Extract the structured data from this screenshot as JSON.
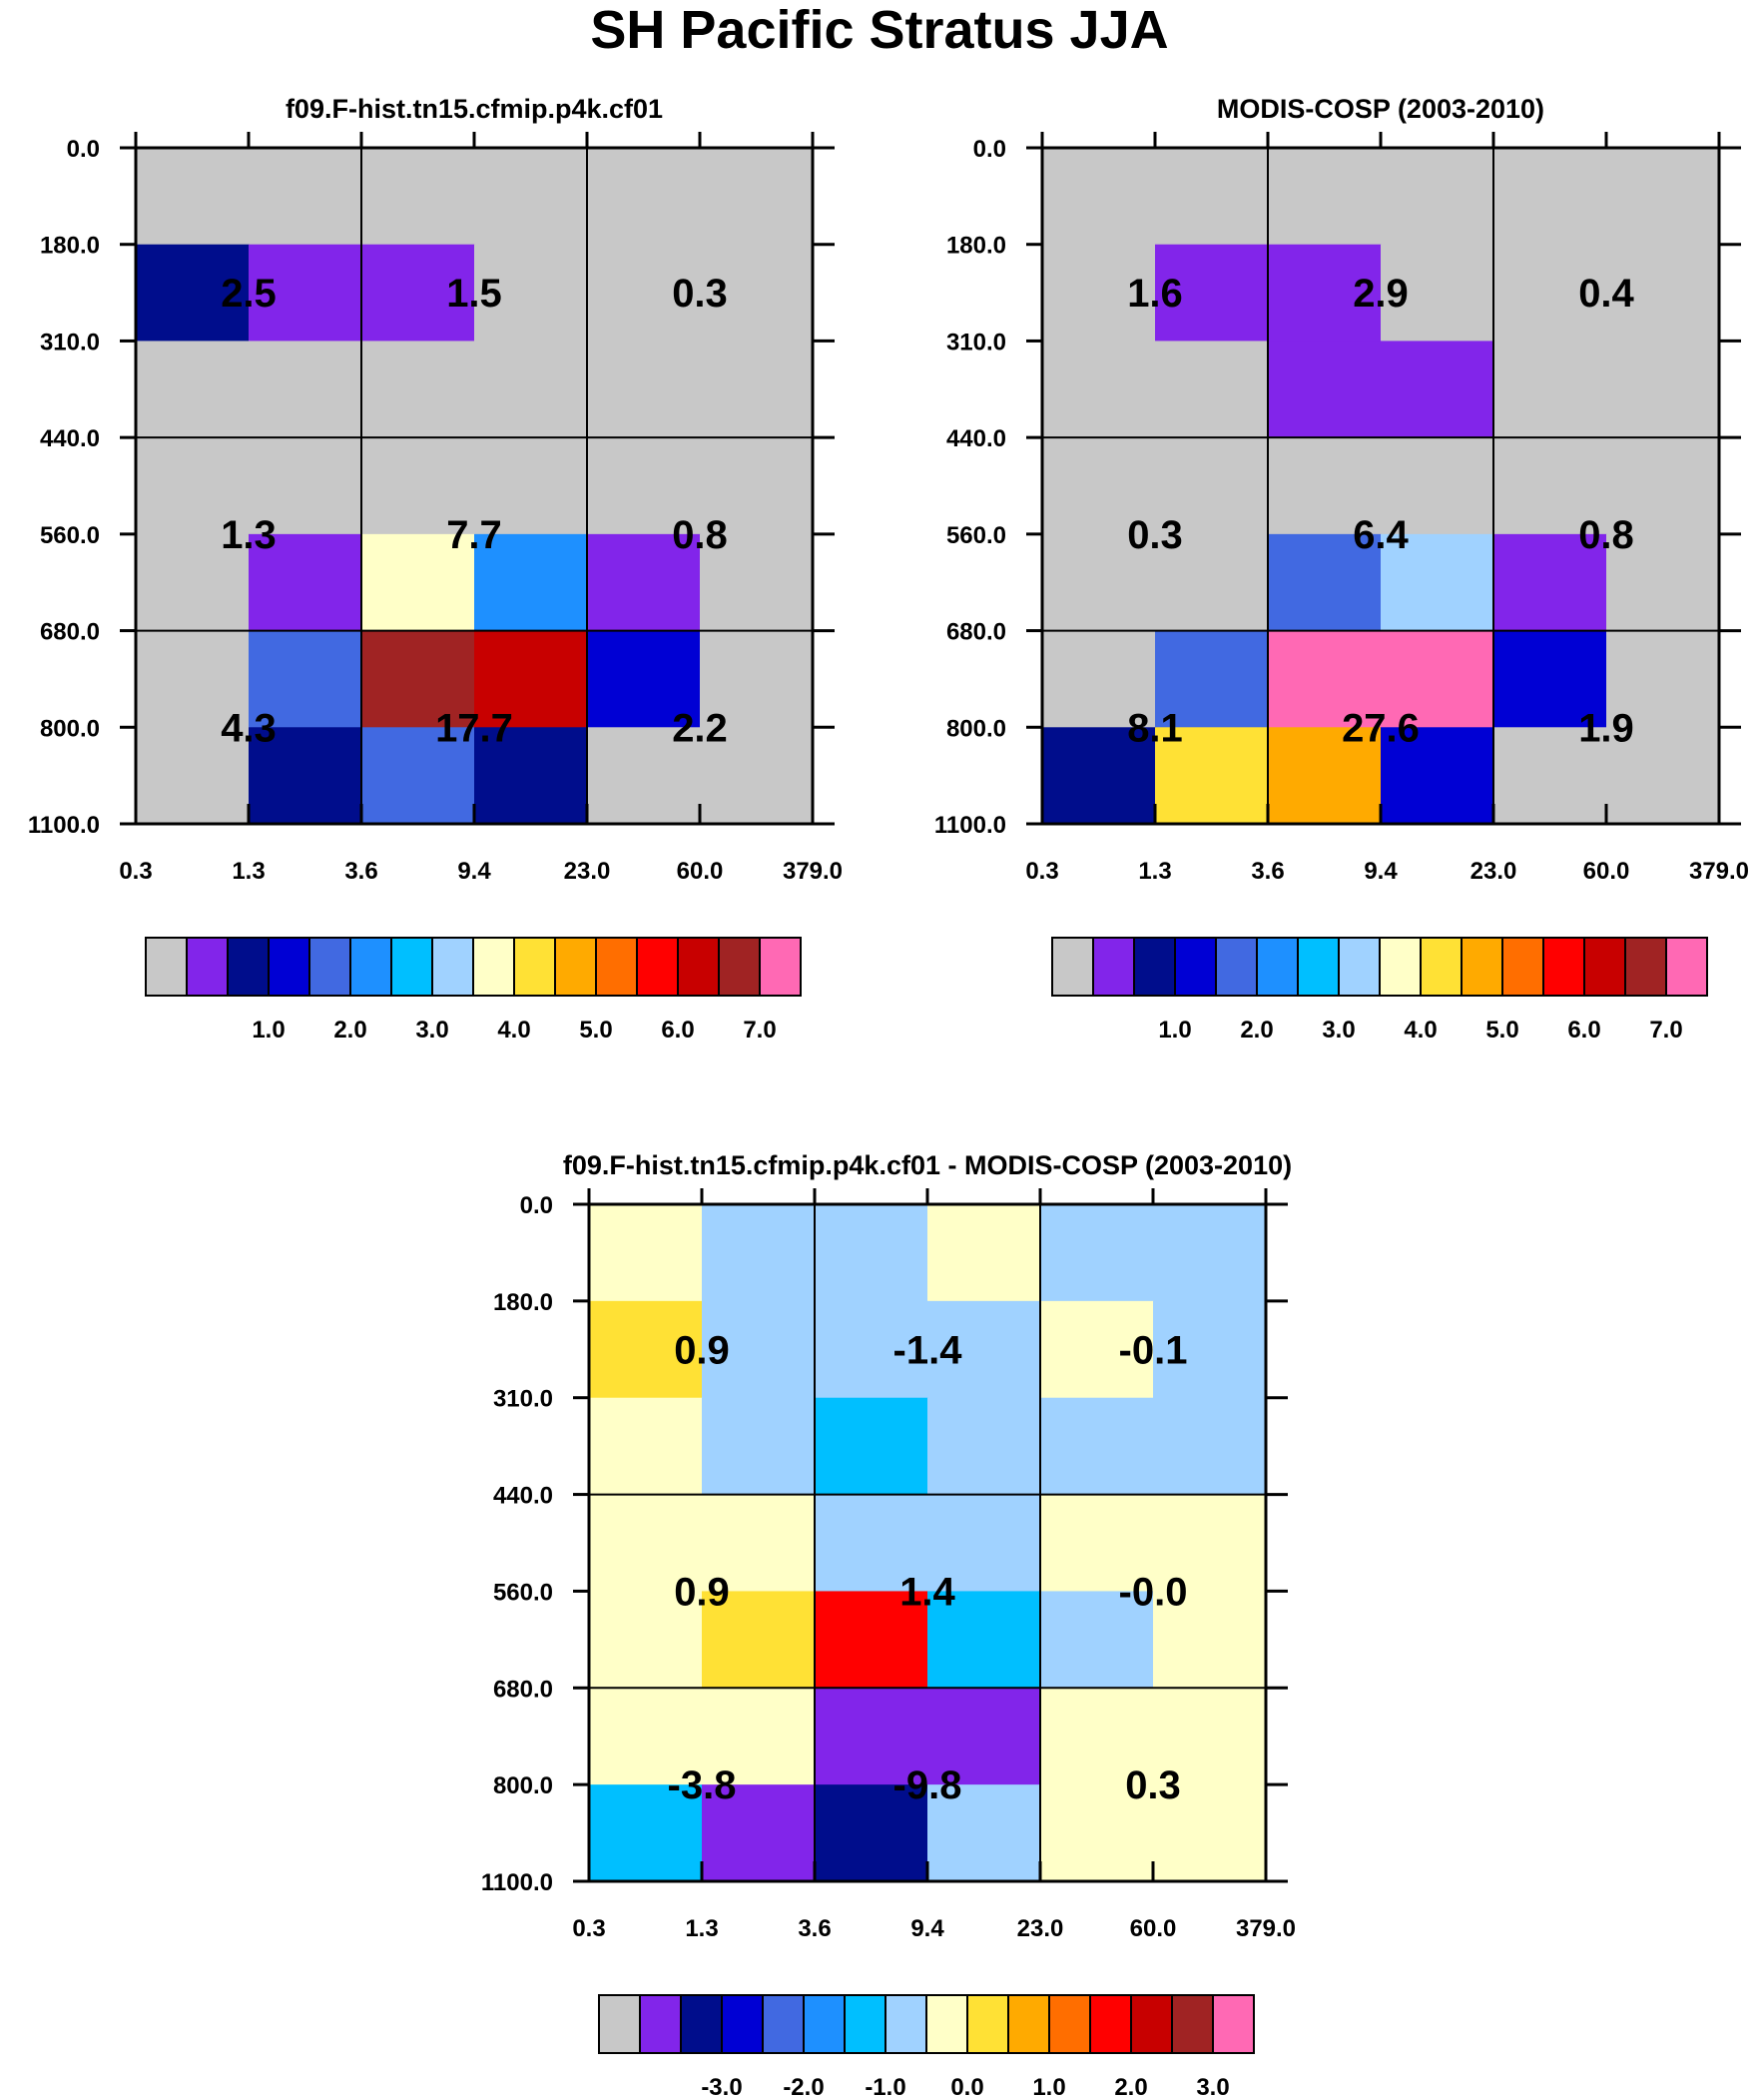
{
  "figure_title": "SH Pacific Stratus JJA",
  "axes": {
    "x_ticks": [
      "0.3",
      "1.3",
      "3.6",
      "9.4",
      "23.0",
      "60.0",
      "379.0"
    ],
    "y_ticks": [
      "0.0",
      "180.0",
      "310.0",
      "440.0",
      "560.0",
      "680.0",
      "800.0",
      "1100.0"
    ]
  },
  "palette": [
    "#c8c8c8",
    "#8225ea",
    "#000d8c",
    "#0000d4",
    "#4169e1",
    "#1e90ff",
    "#00bfff",
    "#a0d2ff",
    "#ffffc8",
    "#ffe135",
    "#ffaa00",
    "#ff6e00",
    "#ff0000",
    "#c80000",
    "#a02323",
    "#ff69b4"
  ],
  "chart_data": [
    {
      "type": "heatmap",
      "title": "f09.F-hist.tn15.cfmip.p4k.cf01",
      "x_edges": [
        "0.3",
        "1.3",
        "3.6",
        "9.4",
        "23.0",
        "60.0",
        "379.0"
      ],
      "y_edges": [
        "0.0",
        "180.0",
        "310.0",
        "440.0",
        "560.0",
        "680.0",
        "800.0",
        "1100.0"
      ],
      "cell_colors": [
        [
          0,
          0,
          0,
          0,
          0,
          0
        ],
        [
          2,
          1,
          1,
          0,
          0,
          0
        ],
        [
          0,
          0,
          0,
          0,
          0,
          0
        ],
        [
          0,
          0,
          0,
          0,
          0,
          0
        ],
        [
          0,
          1,
          8,
          5,
          1,
          0
        ],
        [
          0,
          4,
          14,
          13,
          3,
          0
        ],
        [
          0,
          2,
          4,
          2,
          0,
          0
        ]
      ],
      "block_values": [
        [
          "2.5",
          "1.5",
          "0.3"
        ],
        [
          "1.3",
          "7.7",
          "0.8"
        ],
        [
          "4.3",
          "17.7",
          "2.2"
        ]
      ],
      "colorbar_labels": [
        "1.0",
        "2.0",
        "3.0",
        "4.0",
        "5.0",
        "6.0",
        "7.0"
      ]
    },
    {
      "type": "heatmap",
      "title": "MODIS-COSP (2003-2010)",
      "x_edges": [
        "0.3",
        "1.3",
        "3.6",
        "9.4",
        "23.0",
        "60.0",
        "379.0"
      ],
      "y_edges": [
        "0.0",
        "180.0",
        "310.0",
        "440.0",
        "560.0",
        "680.0",
        "800.0",
        "1100.0"
      ],
      "cell_colors": [
        [
          0,
          0,
          0,
          0,
          0,
          0
        ],
        [
          0,
          1,
          1,
          0,
          0,
          0
        ],
        [
          0,
          0,
          1,
          1,
          0,
          0
        ],
        [
          0,
          0,
          0,
          0,
          0,
          0
        ],
        [
          0,
          0,
          4,
          7,
          1,
          0
        ],
        [
          0,
          4,
          15,
          15,
          3,
          0
        ],
        [
          2,
          9,
          10,
          3,
          0,
          0
        ]
      ],
      "block_values": [
        [
          "1.6",
          "2.9",
          "0.4"
        ],
        [
          "0.3",
          "6.4",
          "0.8"
        ],
        [
          "8.1",
          "27.6",
          "1.9"
        ]
      ],
      "colorbar_labels": [
        "1.0",
        "2.0",
        "3.0",
        "4.0",
        "5.0",
        "6.0",
        "7.0"
      ]
    },
    {
      "type": "heatmap",
      "title": "f09.F-hist.tn15.cfmip.p4k.cf01 - MODIS-COSP (2003-2010)",
      "x_edges": [
        "0.3",
        "1.3",
        "3.6",
        "9.4",
        "23.0",
        "60.0",
        "379.0"
      ],
      "y_edges": [
        "0.0",
        "180.0",
        "310.0",
        "440.0",
        "560.0",
        "680.0",
        "800.0",
        "1100.0"
      ],
      "cell_colors": [
        [
          8,
          7,
          7,
          8,
          7,
          7
        ],
        [
          9,
          7,
          7,
          7,
          8,
          7
        ],
        [
          8,
          7,
          6,
          7,
          7,
          7
        ],
        [
          8,
          8,
          7,
          7,
          8,
          8
        ],
        [
          8,
          9,
          12,
          6,
          7,
          8
        ],
        [
          8,
          8,
          1,
          1,
          8,
          8
        ],
        [
          6,
          1,
          2,
          7,
          8,
          8
        ]
      ],
      "block_values": [
        [
          "0.9",
          "-1.4",
          "-0.1"
        ],
        [
          "0.9",
          "1.4",
          "-0.0"
        ],
        [
          "-3.8",
          "-9.8",
          "0.3"
        ]
      ],
      "colorbar_labels": [
        "-3.0",
        "-2.0",
        "-1.0",
        "0.0",
        "1.0",
        "2.0",
        "3.0"
      ]
    }
  ]
}
